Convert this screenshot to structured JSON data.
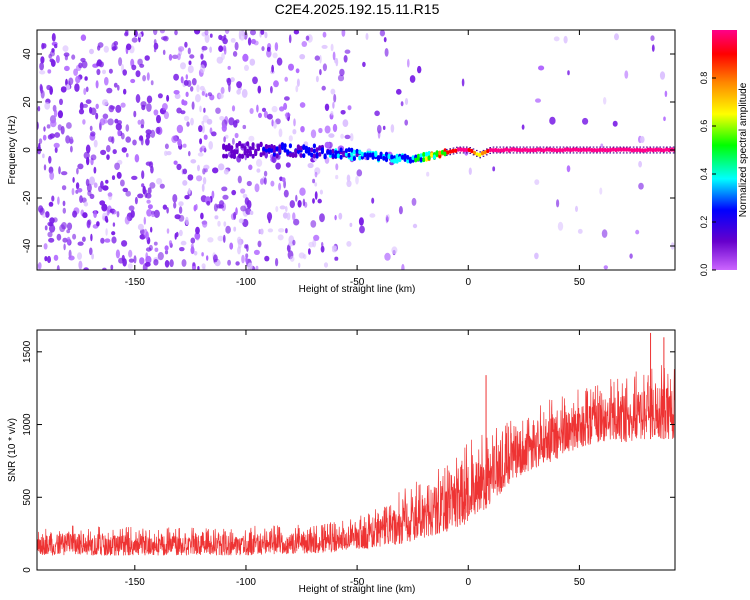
{
  "figure_title": "C2E4.2025.192.15.11.R15",
  "chart_data": [
    {
      "type": "heatmap",
      "title": "",
      "xlabel": "Height of straight line (km)",
      "ylabel": "Frequency (Hz)",
      "xlim": [
        -194,
        93
      ],
      "ylim": [
        -50,
        50
      ],
      "x_ticks": [
        -150,
        -100,
        -50,
        0,
        50
      ],
      "y_ticks": [
        -40,
        -20,
        0,
        20,
        40
      ],
      "grid": false,
      "colorbar": {
        "label": "Normalized spectral amplitude",
        "range": [
          0,
          1
        ],
        "ticks": [
          0.0,
          0.2,
          0.4,
          0.6,
          0.8
        ],
        "colormap": [
          "#cc66ff",
          "#6600cc",
          "#0000ff",
          "#00ffff",
          "#00ff00",
          "#ffff00",
          "#ff8800",
          "#ff0000",
          "#ff0088"
        ]
      },
      "series": [
        {
          "description_points_x": [
            -190,
            -100,
            -75,
            -50,
            -25,
            -5,
            0,
            5,
            10,
            50,
            90
          ],
          "frequency_center": [
            0,
            0,
            0,
            -2,
            -4,
            0,
            0,
            -2,
            0,
            0,
            0
          ],
          "amplitude": [
            0.12,
            0.15,
            0.22,
            0.3,
            0.35,
            0.95,
            0.95,
            0.6,
            0.95,
            0.95,
            0.95
          ]
        }
      ]
    },
    {
      "type": "line",
      "title": "",
      "xlabel": "Height of straight line (km)",
      "ylabel": "SNR (10 * v/v)",
      "xlim": [
        -194,
        93
      ],
      "ylim": [
        0,
        1650
      ],
      "x_ticks": [
        -150,
        -100,
        -50,
        0,
        50
      ],
      "y_ticks": [
        0,
        500,
        1000,
        1500
      ],
      "grid": false,
      "color": "#ee3333",
      "x": [
        -194,
        -180,
        -160,
        -140,
        -120,
        -100,
        -80,
        -60,
        -50,
        -40,
        -30,
        -20,
        -10,
        0,
        10,
        20,
        30,
        40,
        50,
        60,
        70,
        80,
        93
      ],
      "y_low": [
        100,
        100,
        100,
        100,
        100,
        100,
        110,
        120,
        140,
        160,
        180,
        220,
        260,
        320,
        450,
        620,
        700,
        760,
        840,
        880,
        880,
        900,
        900
      ],
      "y_high": [
        300,
        320,
        300,
        290,
        300,
        300,
        320,
        330,
        360,
        450,
        550,
        650,
        750,
        900,
        950,
        1050,
        1150,
        1200,
        1250,
        1300,
        1330,
        1400,
        1450
      ],
      "spikes": [
        {
          "x": 8,
          "y": 1340
        },
        {
          "x": 82,
          "y": 1630
        },
        {
          "x": 88,
          "y": 1600
        }
      ]
    }
  ]
}
